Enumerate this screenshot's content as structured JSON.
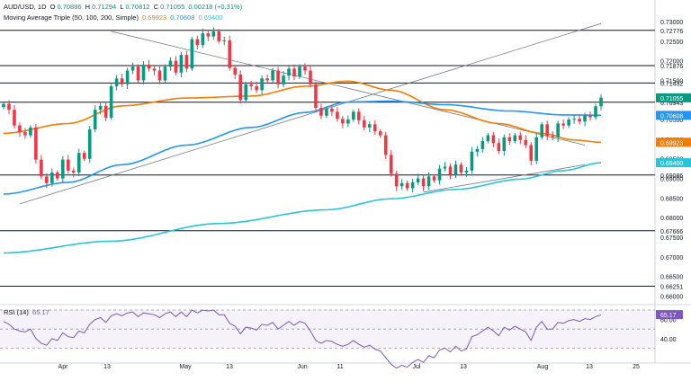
{
  "legend": {
    "symbol": "AUD/USD, 1D",
    "open_label": "O",
    "open": "0.70886",
    "high_label": "H",
    "high": "0.71294",
    "low_label": "L",
    "low": "0.70812",
    "close_label": "C",
    "close": "0.71055",
    "change": "0.00218 (+0.31%)",
    "ma_title": "Moving Average Triple (50, 100, 200, Simple)",
    "ma50": "0.69923",
    "ma100": "0.70608",
    "ma200": "0.69400",
    "rsi_title": "RSI (14)",
    "rsi_value": "65.17"
  },
  "colors": {
    "up": "#089981",
    "down": "#f23645",
    "ma50": "#f57c00",
    "ma100": "#2196f3",
    "ma200": "#26c6da",
    "rsi": "#7e57c2",
    "level": "#131722",
    "trend": "#787b86"
  },
  "chart_data": {
    "type": "candlestick",
    "instrument": "AUD/USD",
    "timeframe": "1D",
    "x_labels": [
      "Apr",
      "13",
      "May",
      "13",
      "Jun",
      "11",
      "Jul",
      "13",
      "Aug",
      "13",
      "25"
    ],
    "y_ticks": [
      "0.73500",
      "0.73000",
      "0.72500",
      "0.72000",
      "0.71500",
      "0.71000",
      "0.70500",
      "0.70000",
      "0.69500",
      "0.69000",
      "0.68500",
      "0.68000",
      "0.67500",
      "0.67000",
      "0.66500",
      "0.66000"
    ],
    "ylim": [
      0.6585,
      0.7355
    ],
    "horizontal_levels": [
      {
        "value": 0.72776,
        "label": "0.72776"
      },
      {
        "value": 0.71876,
        "label": "0.71876"
      },
      {
        "value": 0.71432,
        "label": "0.71432"
      },
      {
        "value": 0.70943,
        "label": "0.70943"
      },
      {
        "value": 0.69086,
        "label": "0.69086"
      },
      {
        "value": 0.67666,
        "label": "0.67666"
      },
      {
        "value": 0.66251,
        "label": "0.66251"
      }
    ],
    "price_tags": [
      {
        "value": 0.71055,
        "label": "0.71055",
        "color": "#089981"
      },
      {
        "value": 0.70608,
        "label": "0.70608",
        "color": "#2196f3"
      },
      {
        "value": 0.69923,
        "label": "0.69923",
        "color": "#f57c00"
      },
      {
        "value": 0.694,
        "label": "0.69400",
        "color": "#26c6da"
      }
    ],
    "closes": [
      0.709,
      0.7075,
      0.7035,
      0.7018,
      0.701,
      0.703,
      0.6948,
      0.6905,
      0.6888,
      0.6915,
      0.69,
      0.6948,
      0.692,
      0.6915,
      0.6965,
      0.695,
      0.7025,
      0.7075,
      0.7085,
      0.7055,
      0.7135,
      0.7155,
      0.714,
      0.7175,
      0.7185,
      0.715,
      0.719,
      0.718,
      0.7175,
      0.715,
      0.7185,
      0.72,
      0.717,
      0.7215,
      0.718,
      0.7255,
      0.724,
      0.727,
      0.7262,
      0.7275,
      0.725,
      0.7252,
      0.7182,
      0.7165,
      0.71,
      0.714,
      0.7135,
      0.7125,
      0.7155,
      0.715,
      0.7175,
      0.714,
      0.7162,
      0.718,
      0.716,
      0.7185,
      0.7175,
      0.714,
      0.708,
      0.706,
      0.7078,
      0.707,
      0.7052,
      0.704,
      0.705,
      0.707,
      0.7048,
      0.703,
      0.7038,
      0.702,
      0.701,
      0.696,
      0.6912,
      0.688,
      0.6888,
      0.6875,
      0.689,
      0.69,
      0.688,
      0.6905,
      0.6895,
      0.6925,
      0.693,
      0.691,
      0.6935,
      0.6915,
      0.692,
      0.6968,
      0.6975,
      0.6995,
      0.701,
      0.699,
      0.697,
      0.7005,
      0.6995,
      0.701,
      0.6998,
      0.6985,
      0.6945,
      0.7005,
      0.7038,
      0.7008,
      0.7005,
      0.704,
      0.7035,
      0.705,
      0.7052,
      0.7045,
      0.706,
      0.7056,
      0.7084,
      0.7106
    ],
    "ma_series": [
      {
        "name": "MA 50",
        "last": 0.69923
      },
      {
        "name": "MA 100",
        "last": 0.70608
      },
      {
        "name": "MA 200",
        "last": 0.694
      }
    ],
    "rsi": {
      "period": 14,
      "last": 65.17,
      "levels": [
        70,
        50,
        30
      ],
      "y_ticks": [
        "60.00",
        "40.00"
      ],
      "values": [
        58,
        55,
        50,
        48,
        47,
        50,
        40,
        35,
        33,
        40,
        38,
        46,
        42,
        41,
        48,
        46,
        55,
        60,
        62,
        57,
        64,
        66,
        64,
        67,
        68,
        63,
        67,
        66,
        65,
        62,
        66,
        68,
        63,
        68,
        63,
        70,
        67,
        70,
        69,
        70,
        65,
        65,
        56,
        53,
        45,
        52,
        51,
        49,
        55,
        54,
        57,
        50,
        54,
        58,
        54,
        58,
        56,
        48,
        38,
        35,
        38,
        37,
        34,
        32,
        34,
        38,
        34,
        31,
        33,
        29,
        27,
        20,
        13,
        9,
        12,
        10,
        15,
        18,
        15,
        22,
        20,
        28,
        30,
        26,
        32,
        27,
        29,
        42,
        44,
        48,
        52,
        48,
        43,
        52,
        49,
        53,
        50,
        47,
        38,
        52,
        58,
        50,
        50,
        57,
        56,
        59,
        60,
        58,
        61,
        60,
        63,
        65
      ]
    }
  }
}
